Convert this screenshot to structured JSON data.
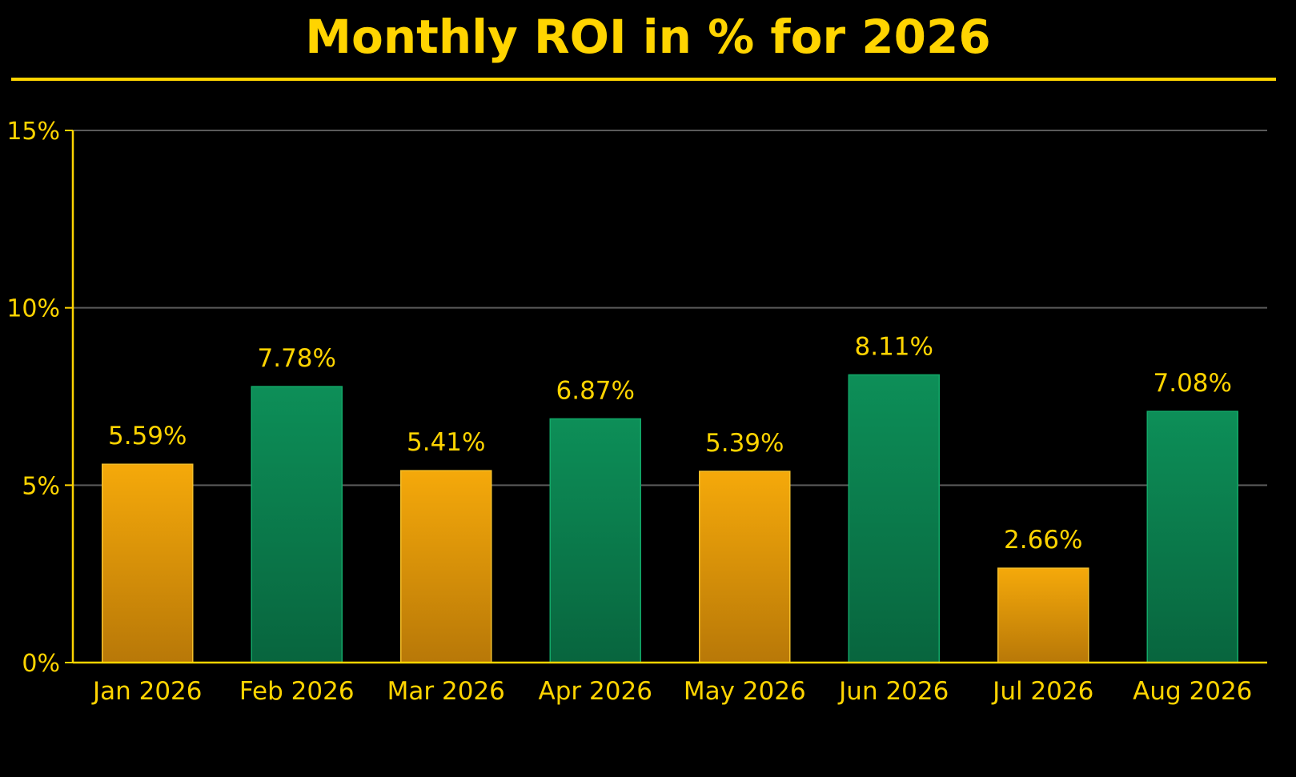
{
  "chart_data": {
    "type": "bar",
    "title": "Monthly ROI in % for 2026",
    "xlabel": "",
    "ylabel": "",
    "categories": [
      "Jan 2026",
      "Feb 2026",
      "Mar 2026",
      "Apr 2026",
      "May 2026",
      "Jun 2026",
      "Jul 2026",
      "Aug 2026"
    ],
    "values": [
      5.59,
      7.78,
      5.41,
      6.87,
      5.39,
      8.11,
      2.66,
      7.08
    ],
    "data_labels": [
      "5.59%",
      "7.78%",
      "5.41%",
      "6.87%",
      "5.39%",
      "8.11%",
      "2.66%",
      "7.08%"
    ],
    "bar_colors": [
      "#F0A30A",
      "#0B8A55",
      "#F0A30A",
      "#0B8A55",
      "#F0A30A",
      "#0B8A55",
      "#F0A30A",
      "#0B8A55"
    ],
    "ylim": [
      0,
      15
    ],
    "yticks": [
      0,
      5,
      10,
      15
    ],
    "ytick_labels": [
      "0%",
      "5%",
      "10%",
      "15%"
    ],
    "grid": true,
    "legend": "none",
    "colors": {
      "background": "#000000",
      "text": "#FFD400",
      "axis": "#FFD400",
      "gridline": "#5A5A5A",
      "orange_bar": "#F0A30A",
      "green_bar": "#0B8A55"
    }
  }
}
